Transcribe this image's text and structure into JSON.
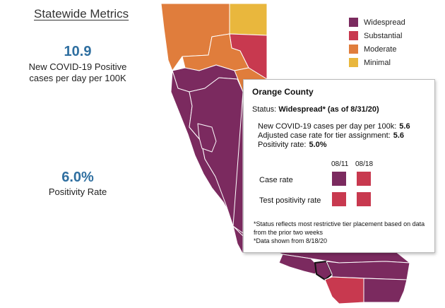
{
  "metrics": {
    "title": "Statewide Metrics",
    "case_value": "10.9",
    "case_label_line1": "New COVID-19 Positive",
    "case_label_line2": "cases per day per 100K",
    "positivity_value": "6.0%",
    "positivity_label": "Positivity Rate"
  },
  "legend": [
    {
      "label": "Widespread",
      "color": "#7b2a5f"
    },
    {
      "label": "Substantial",
      "color": "#c8394f"
    },
    {
      "label": "Moderate",
      "color": "#e07d3c"
    },
    {
      "label": "Minimal",
      "color": "#e9b73d"
    }
  ],
  "tooltip": {
    "county": "Orange County",
    "status_prefix": "Status:",
    "status_value": "Widespread* (as of 8/31/20)",
    "stats": [
      {
        "label": "New COVID-19 cases per day per 100k:",
        "value": "5.6"
      },
      {
        "label": "Adjusted case rate for tier assignment:",
        "value": "5.6"
      },
      {
        "label": "Positivity rate:",
        "value": "5.0%"
      }
    ],
    "columns": [
      "08/11",
      "08/18"
    ],
    "rows": [
      {
        "label": "Case rate",
        "colors": [
          "#7b2a5f",
          "#c8394f"
        ]
      },
      {
        "label": "Test positivity rate",
        "colors": [
          "#c8394f",
          "#c8394f"
        ]
      }
    ],
    "note1": "*Status reflects most restrictive tier placement based on data from the prior two weeks",
    "note2": "*Data shown from 8/18/20"
  }
}
